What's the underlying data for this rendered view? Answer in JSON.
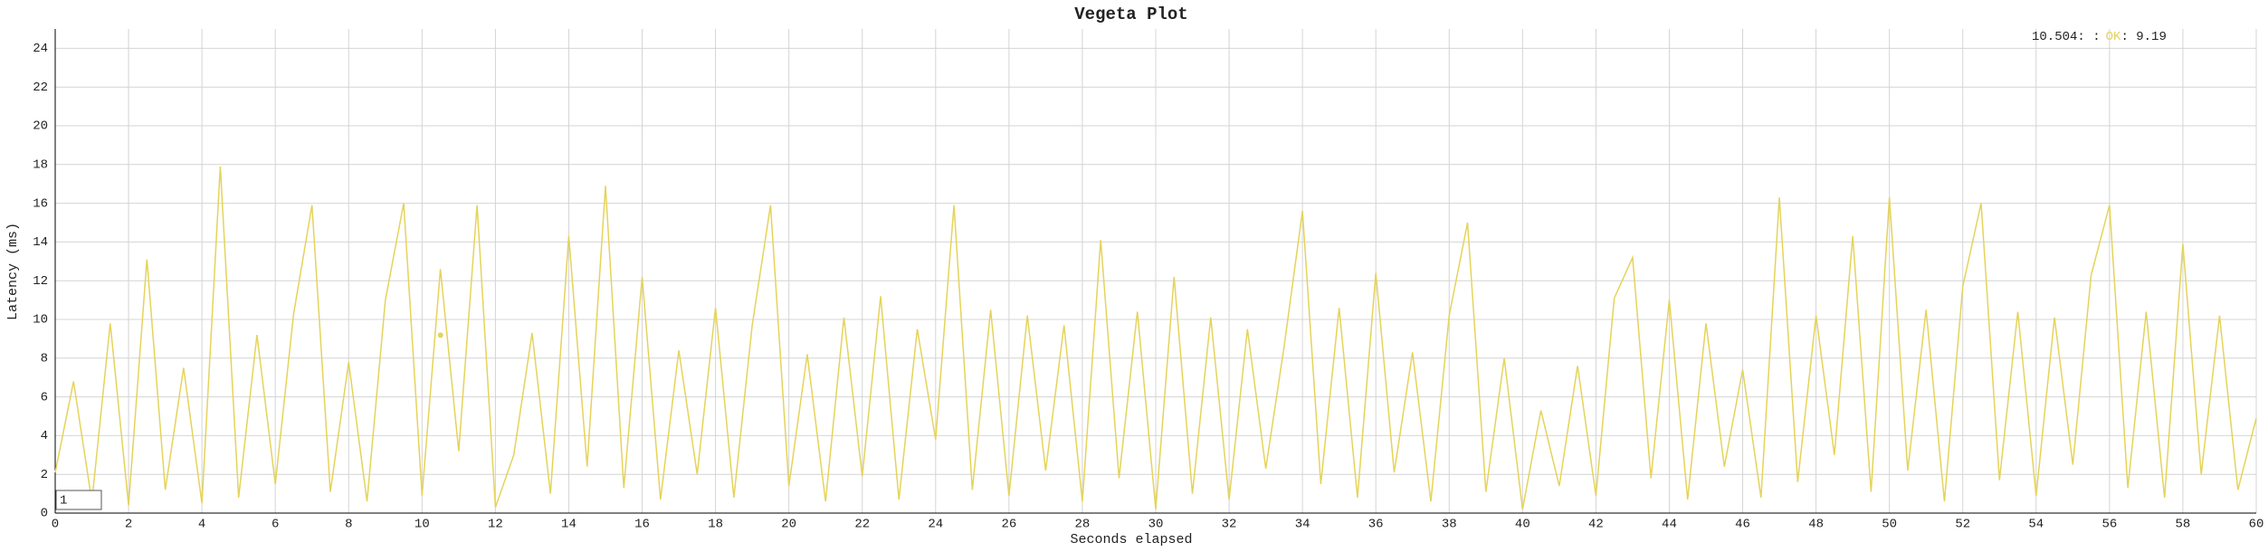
{
  "chart_data": {
    "type": "line",
    "title": "Vegeta Plot",
    "x_label": "Seconds elapsed",
    "y_label": "Latency (ms)",
    "xlim": [
      0,
      60
    ],
    "ylim": [
      0,
      25
    ],
    "xticks": [
      0,
      2,
      4,
      6,
      8,
      10,
      12,
      14,
      16,
      18,
      20,
      22,
      24,
      26,
      28,
      30,
      32,
      34,
      36,
      38,
      40,
      42,
      44,
      46,
      48,
      50,
      52,
      54,
      56,
      58,
      60
    ],
    "yticks": [
      0,
      2,
      4,
      6,
      8,
      10,
      12,
      14,
      16,
      18,
      20,
      22,
      24
    ],
    "grid": true,
    "x": [
      0,
      0.5,
      1,
      1.5,
      2,
      2.5,
      3,
      3.5,
      4,
      4.5,
      5,
      5.5,
      6,
      6.5,
      7,
      7.5,
      8,
      8.5,
      9,
      9.5,
      10,
      10.5,
      11,
      11.5,
      12,
      12.5,
      13,
      13.5,
      14,
      14.5,
      15,
      15.5,
      16,
      16.5,
      17,
      17.5,
      18,
      18.5,
      19,
      19.5,
      20,
      20.5,
      21,
      21.5,
      22,
      22.5,
      23,
      23.5,
      24,
      24.5,
      25,
      25.5,
      26,
      26.5,
      27,
      27.5,
      28,
      28.5,
      29,
      29.5,
      30,
      30.5,
      31,
      31.5,
      32,
      32.5,
      33,
      33.5,
      34,
      34.5,
      35,
      35.5,
      36,
      36.5,
      37,
      37.5,
      38,
      38.5,
      39,
      39.5,
      40,
      40.5,
      41,
      41.5,
      42,
      42.5,
      43,
      43.5,
      44,
      44.5,
      45,
      45.5,
      46,
      46.5,
      47,
      47.5,
      48,
      48.5,
      49,
      49.5,
      50,
      50.5,
      51,
      51.5,
      52,
      52.5,
      53,
      53.5,
      54,
      54.5,
      55,
      55.5,
      56,
      56.5,
      57,
      57.5,
      58,
      58.5,
      59,
      59.5,
      60
    ],
    "series": [
      {
        "name": "OK",
        "color": "#e5d35a",
        "values": [
          2.1,
          6.8,
          0.6,
          9.8,
          0.4,
          13.1,
          1.2,
          7.5,
          0.5,
          17.9,
          0.8,
          9.2,
          1.5,
          10.3,
          15.9,
          1.1,
          7.8,
          0.6,
          11.0,
          16.0,
          0.9,
          12.6,
          3.2,
          15.9,
          0.3,
          3.0,
          9.3,
          1.0,
          14.3,
          2.4,
          16.9,
          1.3,
          12.2,
          0.7,
          8.4,
          2.0,
          10.6,
          0.8,
          9.7,
          15.9,
          1.4,
          8.2,
          0.6,
          10.1,
          1.9,
          11.2,
          0.7,
          9.5,
          3.8,
          15.9,
          1.2,
          10.5,
          0.9,
          10.2,
          2.2,
          9.7,
          0.6,
          14.1,
          1.8,
          10.4,
          0.2,
          12.2,
          1.0,
          10.1,
          0.7,
          9.5,
          2.3,
          8.6,
          15.6,
          1.5,
          10.6,
          0.8,
          12.4,
          2.1,
          8.3,
          0.6,
          10.2,
          15.0,
          1.1,
          8.0,
          0.2,
          5.3,
          1.4,
          7.6,
          0.9,
          11.1,
          13.2,
          1.8,
          11.0,
          0.7,
          9.8,
          2.4,
          7.4,
          0.8,
          16.3,
          1.6,
          10.2,
          3.0,
          14.3,
          1.1,
          16.3,
          2.2,
          10.5,
          0.6,
          11.7,
          16.0,
          1.7,
          10.4,
          0.9,
          10.1,
          2.5,
          12.3,
          15.9,
          1.3,
          10.4,
          0.8,
          13.9,
          2.0,
          10.2,
          1.2,
          4.9
        ]
      }
    ],
    "highlight": {
      "x": 10.504,
      "y": 9.19
    },
    "legend": [
      "10.504: :",
      "OK",
      ": 9.19"
    ],
    "roll_period": 1
  }
}
